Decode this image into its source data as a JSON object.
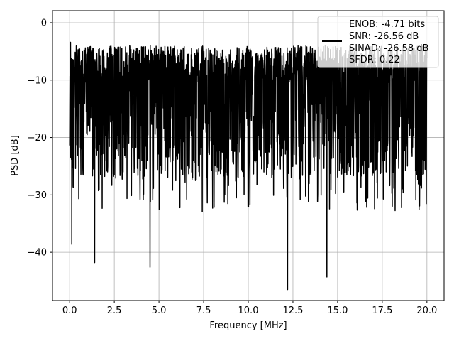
{
  "chart_data": {
    "type": "line",
    "title": "",
    "xlabel": "Frequency [MHz]",
    "ylabel": "PSD [dB]",
    "xlim": [
      -0.96,
      20.96
    ],
    "ylim": [
      -48.4,
      2.1
    ],
    "xticks": [
      0.0,
      2.5,
      5.0,
      7.5,
      10.0,
      12.5,
      15.0,
      17.5,
      20.0
    ],
    "xtick_labels": [
      "0.0",
      "2.5",
      "5.0",
      "7.5",
      "10.0",
      "12.5",
      "15.0",
      "17.5",
      "20.0"
    ],
    "yticks": [
      0,
      -10,
      -20,
      -30,
      -40
    ],
    "ytick_labels": [
      "0",
      "−10",
      "−20",
      "−30",
      "−40"
    ],
    "grid": true,
    "legend_position": "top-right",
    "series": [
      {
        "name": "ENOB: -4.71 bits\nSNR: -26.56 dB\nSINAD: -26.58 dB\nSFDR: 0.22",
        "color": "#000000",
        "x_range": [
          0.0,
          20.0
        ],
        "baseline_db": -14,
        "noise_band_db": [
          -27,
          -4
        ],
        "max_db": -1.5,
        "notable_points": [
          {
            "x": 0.05,
            "y": -3.4
          },
          {
            "x": 0.12,
            "y": -38.6
          },
          {
            "x": 1.4,
            "y": -41.8
          },
          {
            "x": 4.5,
            "y": -42.6
          },
          {
            "x": 12.2,
            "y": -46.5
          },
          {
            "x": 14.4,
            "y": -44.3
          }
        ]
      }
    ],
    "legend_lines": [
      "ENOB: -4.71 bits",
      "SNR: -26.56 dB",
      "SINAD: -26.58 dB",
      "SFDR: 0.22"
    ]
  }
}
